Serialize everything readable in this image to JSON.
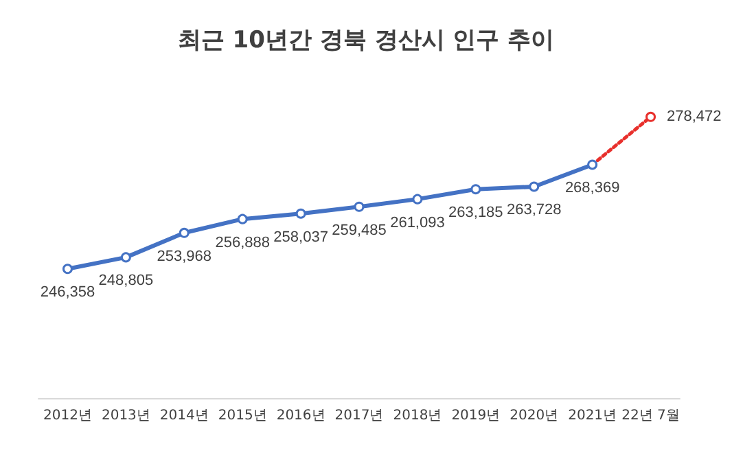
{
  "chart_data": {
    "type": "line",
    "title": "최근 10년간 경북 경산시 인구 추이",
    "categories": [
      "2012년",
      "2013년",
      "2014년",
      "2015년",
      "2016년",
      "2017년",
      "2018년",
      "2019년",
      "2020년",
      "2021년",
      "22년 7월"
    ],
    "series": [
      {
        "color": "#4472c4",
        "line_style": "solid",
        "values": [
          246358,
          248805,
          253968,
          256888,
          258037,
          259485,
          261093,
          263185,
          263728,
          268369,
          null
        ],
        "value_labels": [
          "246,358",
          "248,805",
          "253,968",
          "256,888",
          "258,037",
          "259,485",
          "261,093",
          "263,185",
          "263,728",
          "268,369",
          null
        ]
      },
      {
        "color": "#e8302c",
        "line_style": "dotted",
        "values": [
          null,
          null,
          null,
          null,
          null,
          null,
          null,
          null,
          null,
          268369,
          278472
        ],
        "value_labels": [
          null,
          null,
          null,
          null,
          null,
          null,
          null,
          null,
          null,
          null,
          "278,472"
        ]
      }
    ],
    "marker": "circle",
    "tick_labels": "x"
  }
}
